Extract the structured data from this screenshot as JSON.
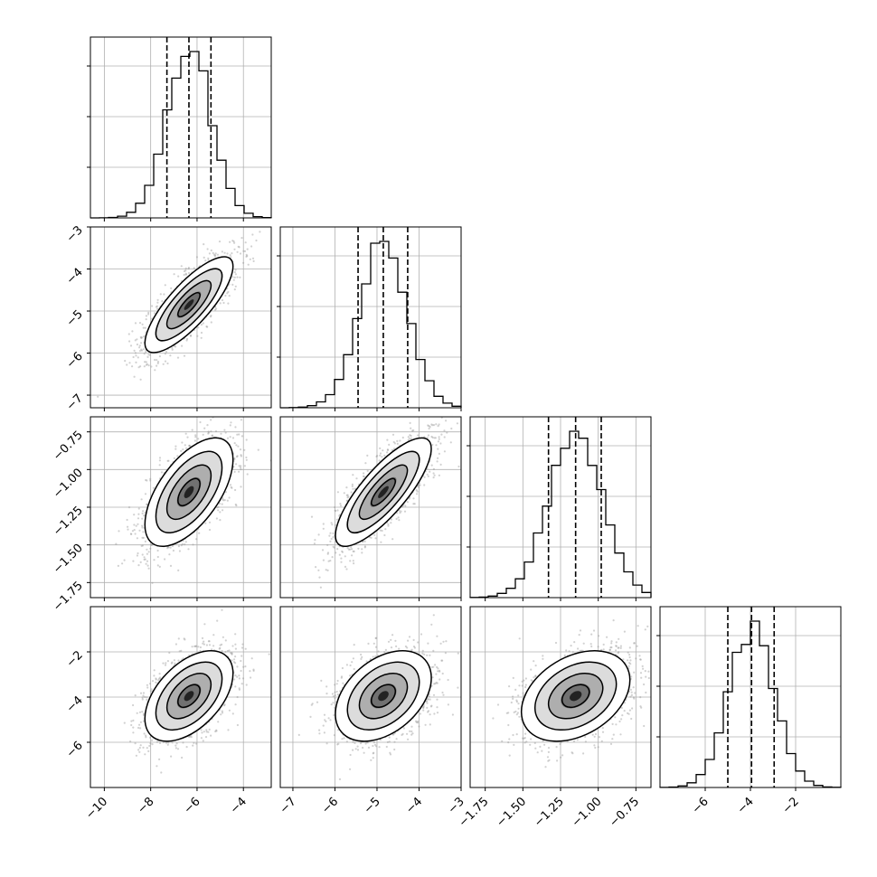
{
  "chart_data": {
    "type": "corner",
    "grid": true,
    "parameters": [
      {
        "index": 0,
        "range": [
          -10.6,
          -2.8
        ],
        "ticks": [
          -10,
          -8,
          -6,
          -4
        ],
        "tick_labels": [
          "−10",
          "−8",
          "−6",
          "−4"
        ],
        "mean": -6.35,
        "sigma": 0.95,
        "quantiles": [
          -7.3,
          -6.35,
          -5.4
        ]
      },
      {
        "index": 1,
        "range": [
          -7.3,
          -3.0
        ],
        "ticks": [
          -7,
          -6,
          -5,
          -4,
          -3
        ],
        "tick_labels": [
          "−7",
          "−6",
          "−5",
          "−4",
          "−3"
        ],
        "mean": -4.85,
        "sigma": 0.57,
        "quantiles": [
          -5.45,
          -4.85,
          -4.27
        ]
      },
      {
        "index": 2,
        "range": [
          -1.85,
          -0.65
        ],
        "ticks": [
          -1.75,
          -1.5,
          -1.25,
          -1.0,
          -0.75
        ],
        "tick_labels": [
          "−1.75",
          "−1.50",
          "−1.25",
          "−1.00",
          "−0.75"
        ],
        "mean": -1.15,
        "sigma": 0.18,
        "quantiles": [
          -1.33,
          -1.15,
          -0.98
        ]
      },
      {
        "index": 3,
        "range": [
          -8.0,
          0.0
        ],
        "ticks": [
          -6,
          -4,
          -2
        ],
        "tick_labels": [
          "−6",
          "−4",
          "−2"
        ],
        "mean": -3.95,
        "sigma": 1.0,
        "quantiles": [
          -5.0,
          -3.95,
          -2.95
        ]
      }
    ],
    "correlations": {
      "0-1": 0.8,
      "0-2": 0.6,
      "0-3": 0.5,
      "1-2": 0.8,
      "1-3": 0.4,
      "2-3": 0.35
    },
    "contour_levels_sigma": [
      0.5,
      1.0,
      1.5,
      2.0
    ]
  }
}
